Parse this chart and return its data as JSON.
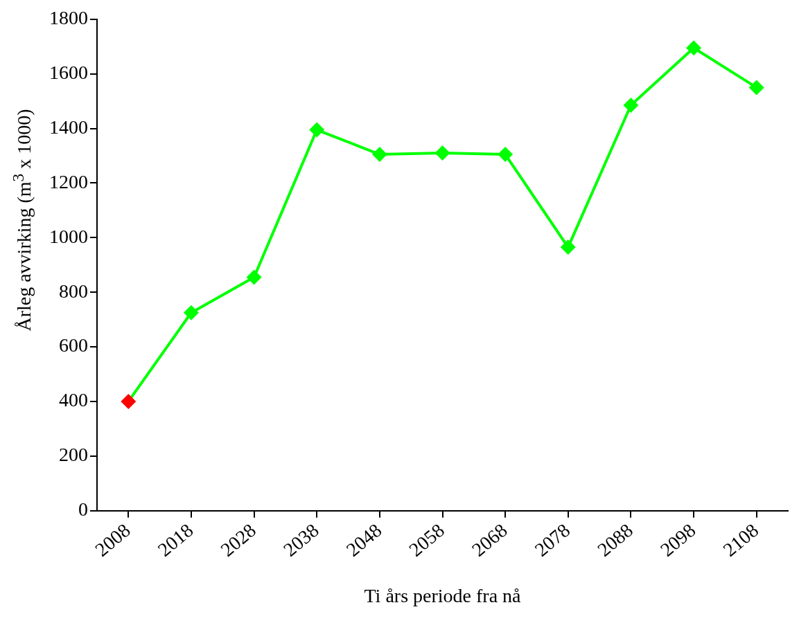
{
  "chart_data": {
    "type": "line",
    "xlabel": "Ti års periode fra nå",
    "ylabel": "Årleg avvirking (m$^{3}$ x 1000)",
    "categories": [
      "2008",
      "2018",
      "2028",
      "2038",
      "2048",
      "2058",
      "2068",
      "2078",
      "2088",
      "2098",
      "2108"
    ],
    "series": [
      {
        "color": "#00ff00",
        "colors": [
          "#ff0000",
          "#00ff00",
          "#00ff00",
          "#00ff00",
          "#00ff00",
          "#00ff00",
          "#00ff00",
          "#00ff00",
          "#00ff00",
          "#00ff00",
          "#00ff00"
        ],
        "values": [
          400,
          725,
          855,
          1395,
          1305,
          1310,
          1305,
          965,
          1485,
          1695,
          1550
        ]
      }
    ],
    "ylim": [
      0,
      1800
    ],
    "yticks": [
      0,
      200,
      400,
      600,
      800,
      1000,
      1200,
      1400,
      1600,
      1800
    ],
    "grid": false,
    "legend": false,
    "marker": "diamond",
    "line_style": "solid"
  }
}
